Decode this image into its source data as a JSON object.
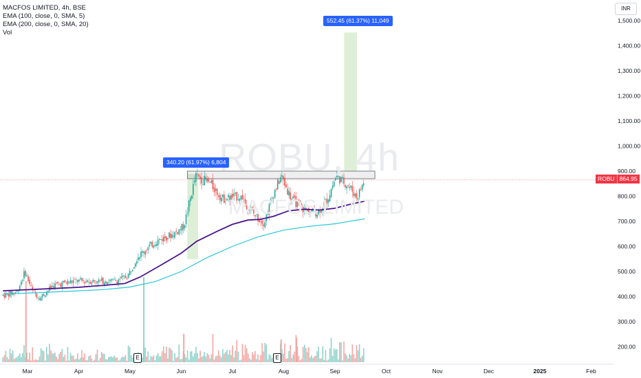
{
  "legend": {
    "title": "MACFOS LIMITED, 4h, BSE",
    "ema1": "EMA (100, close, 0, SMA, 5)",
    "ema2": "EMA (200, close, 0, SMA, 20)",
    "vol": "Vol"
  },
  "watermark": {
    "symbol_tf": "ROBU, 4h",
    "company": "MACFOS LIMITED"
  },
  "currency": "INR",
  "price_tag": {
    "symbol": "ROBU",
    "value": "864.95",
    "color": "#f23645"
  },
  "measurements": [
    {
      "label": "340.20 (61.97%) 6,804"
    },
    {
      "label": "552.45 (61.37%) 11,049"
    }
  ],
  "earnings_marker": "E",
  "colors": {
    "up": "#26a69a",
    "down": "#ef5350",
    "ema100": "#4a148c",
    "ema200": "#26c6da",
    "measure_fill": "#d7eccf",
    "measure_label": "#2962ff",
    "price_line": "#f23645",
    "volume_up": "#8fd2ca",
    "volume_down": "#f5a5a3"
  },
  "chart_data": {
    "type": "candlestick",
    "timeframe": "4h",
    "y_axis": {
      "min": 110,
      "max": 1580,
      "currency": "INR",
      "ticks": [
        "200.00",
        "300.00",
        "400.00",
        "500.00",
        "600.00",
        "700.00",
        "800.00",
        "900.00",
        "1,000.00",
        "1,100.00",
        "1,200.00",
        "1,300.00",
        "1,400.00",
        "1,500.00"
      ],
      "tick_values": [
        200,
        300,
        400,
        500,
        600,
        700,
        800,
        900,
        1000,
        1100,
        1200,
        1300,
        1400,
        1500
      ]
    },
    "x_axis": {
      "months": [
        "Mar",
        "Apr",
        "May",
        "Jun",
        "Jul",
        "Aug",
        "Sep",
        "Oct",
        "Nov",
        "Dec",
        "2025",
        "Feb"
      ],
      "month_index": [
        0,
        1,
        2,
        3,
        4,
        5,
        6,
        7,
        8,
        9,
        10,
        11
      ]
    },
    "price_anchors": [
      {
        "t": -0.48,
        "p": 405
      },
      {
        "t": -0.2,
        "p": 420
      },
      {
        "t": -0.05,
        "p": 500
      },
      {
        "t": 0.1,
        "p": 420
      },
      {
        "t": 0.25,
        "p": 395
      },
      {
        "t": 0.5,
        "p": 445
      },
      {
        "t": 0.9,
        "p": 462
      },
      {
        "t": 1.3,
        "p": 462
      },
      {
        "t": 1.7,
        "p": 462
      },
      {
        "t": 1.95,
        "p": 480
      },
      {
        "t": 2.15,
        "p": 560
      },
      {
        "t": 2.5,
        "p": 620
      },
      {
        "t": 2.85,
        "p": 650
      },
      {
        "t": 3.05,
        "p": 680
      },
      {
        "t": 3.28,
        "p": 880
      },
      {
        "t": 3.55,
        "p": 855
      },
      {
        "t": 3.8,
        "p": 790
      },
      {
        "t": 4.15,
        "p": 800
      },
      {
        "t": 4.45,
        "p": 720
      },
      {
        "t": 4.62,
        "p": 695
      },
      {
        "t": 4.78,
        "p": 800
      },
      {
        "t": 4.95,
        "p": 880
      },
      {
        "t": 5.15,
        "p": 790
      },
      {
        "t": 5.4,
        "p": 745
      },
      {
        "t": 5.65,
        "p": 735
      },
      {
        "t": 5.85,
        "p": 785
      },
      {
        "t": 6.02,
        "p": 880
      },
      {
        "t": 6.28,
        "p": 840
      },
      {
        "t": 6.43,
        "p": 795
      },
      {
        "t": 6.58,
        "p": 865
      }
    ],
    "ema100": [
      {
        "t": -0.48,
        "p": 423
      },
      {
        "t": 0.5,
        "p": 432
      },
      {
        "t": 1.0,
        "p": 437
      },
      {
        "t": 1.5,
        "p": 445
      },
      {
        "t": 1.9,
        "p": 452
      },
      {
        "t": 2.2,
        "p": 478
      },
      {
        "t": 2.6,
        "p": 525
      },
      {
        "t": 3.0,
        "p": 573
      },
      {
        "t": 3.3,
        "p": 620
      },
      {
        "t": 3.7,
        "p": 660
      },
      {
        "t": 4.0,
        "p": 688
      },
      {
        "t": 4.3,
        "p": 705
      },
      {
        "t": 4.55,
        "p": 708
      },
      {
        "t": 4.8,
        "p": 720
      },
      {
        "t": 5.1,
        "p": 742
      },
      {
        "t": 5.4,
        "p": 748
      },
      {
        "t": 5.7,
        "p": 745
      },
      {
        "t": 6.0,
        "p": 752
      },
      {
        "t": 6.3,
        "p": 768
      },
      {
        "t": 6.58,
        "p": 780
      }
    ],
    "ema200": [
      {
        "t": -0.48,
        "p": 410
      },
      {
        "t": 0.5,
        "p": 418
      },
      {
        "t": 1.0,
        "p": 423
      },
      {
        "t": 1.5,
        "p": 428
      },
      {
        "t": 2.0,
        "p": 438
      },
      {
        "t": 2.5,
        "p": 460
      },
      {
        "t": 3.0,
        "p": 500
      },
      {
        "t": 3.5,
        "p": 555
      },
      {
        "t": 4.0,
        "p": 600
      },
      {
        "t": 4.5,
        "p": 638
      },
      {
        "t": 5.0,
        "p": 665
      },
      {
        "t": 5.5,
        "p": 680
      },
      {
        "t": 6.0,
        "p": 690
      },
      {
        "t": 6.58,
        "p": 710
      }
    ],
    "price_line": 864.95,
    "resistance_zone": {
      "t_start": 3.12,
      "t_end": 6.78,
      "p_low": 870,
      "p_high": 900
    },
    "measurements": [
      {
        "t_start": 3.12,
        "t_end": 3.33,
        "p_start": 549,
        "p_end": 889.2,
        "change": 340.2,
        "percent": 61.97,
        "bars": 6804
      },
      {
        "t_start": 6.18,
        "t_end": 6.43,
        "p_start": 900.2,
        "p_end": 1452.65,
        "change": 552.45,
        "percent": 61.37,
        "bars": 11049
      }
    ],
    "volume_spikes": [
      {
        "t": -0.03,
        "rel": 1.0
      },
      {
        "t": 2.27,
        "rel": 1.05
      },
      {
        "t": 3.05,
        "rel": 0.35
      },
      {
        "t": 4.95,
        "rel": 0.28
      },
      {
        "t": 5.25,
        "rel": 0.3
      }
    ],
    "earnings_t": [
      2.2,
      4.85
    ]
  }
}
